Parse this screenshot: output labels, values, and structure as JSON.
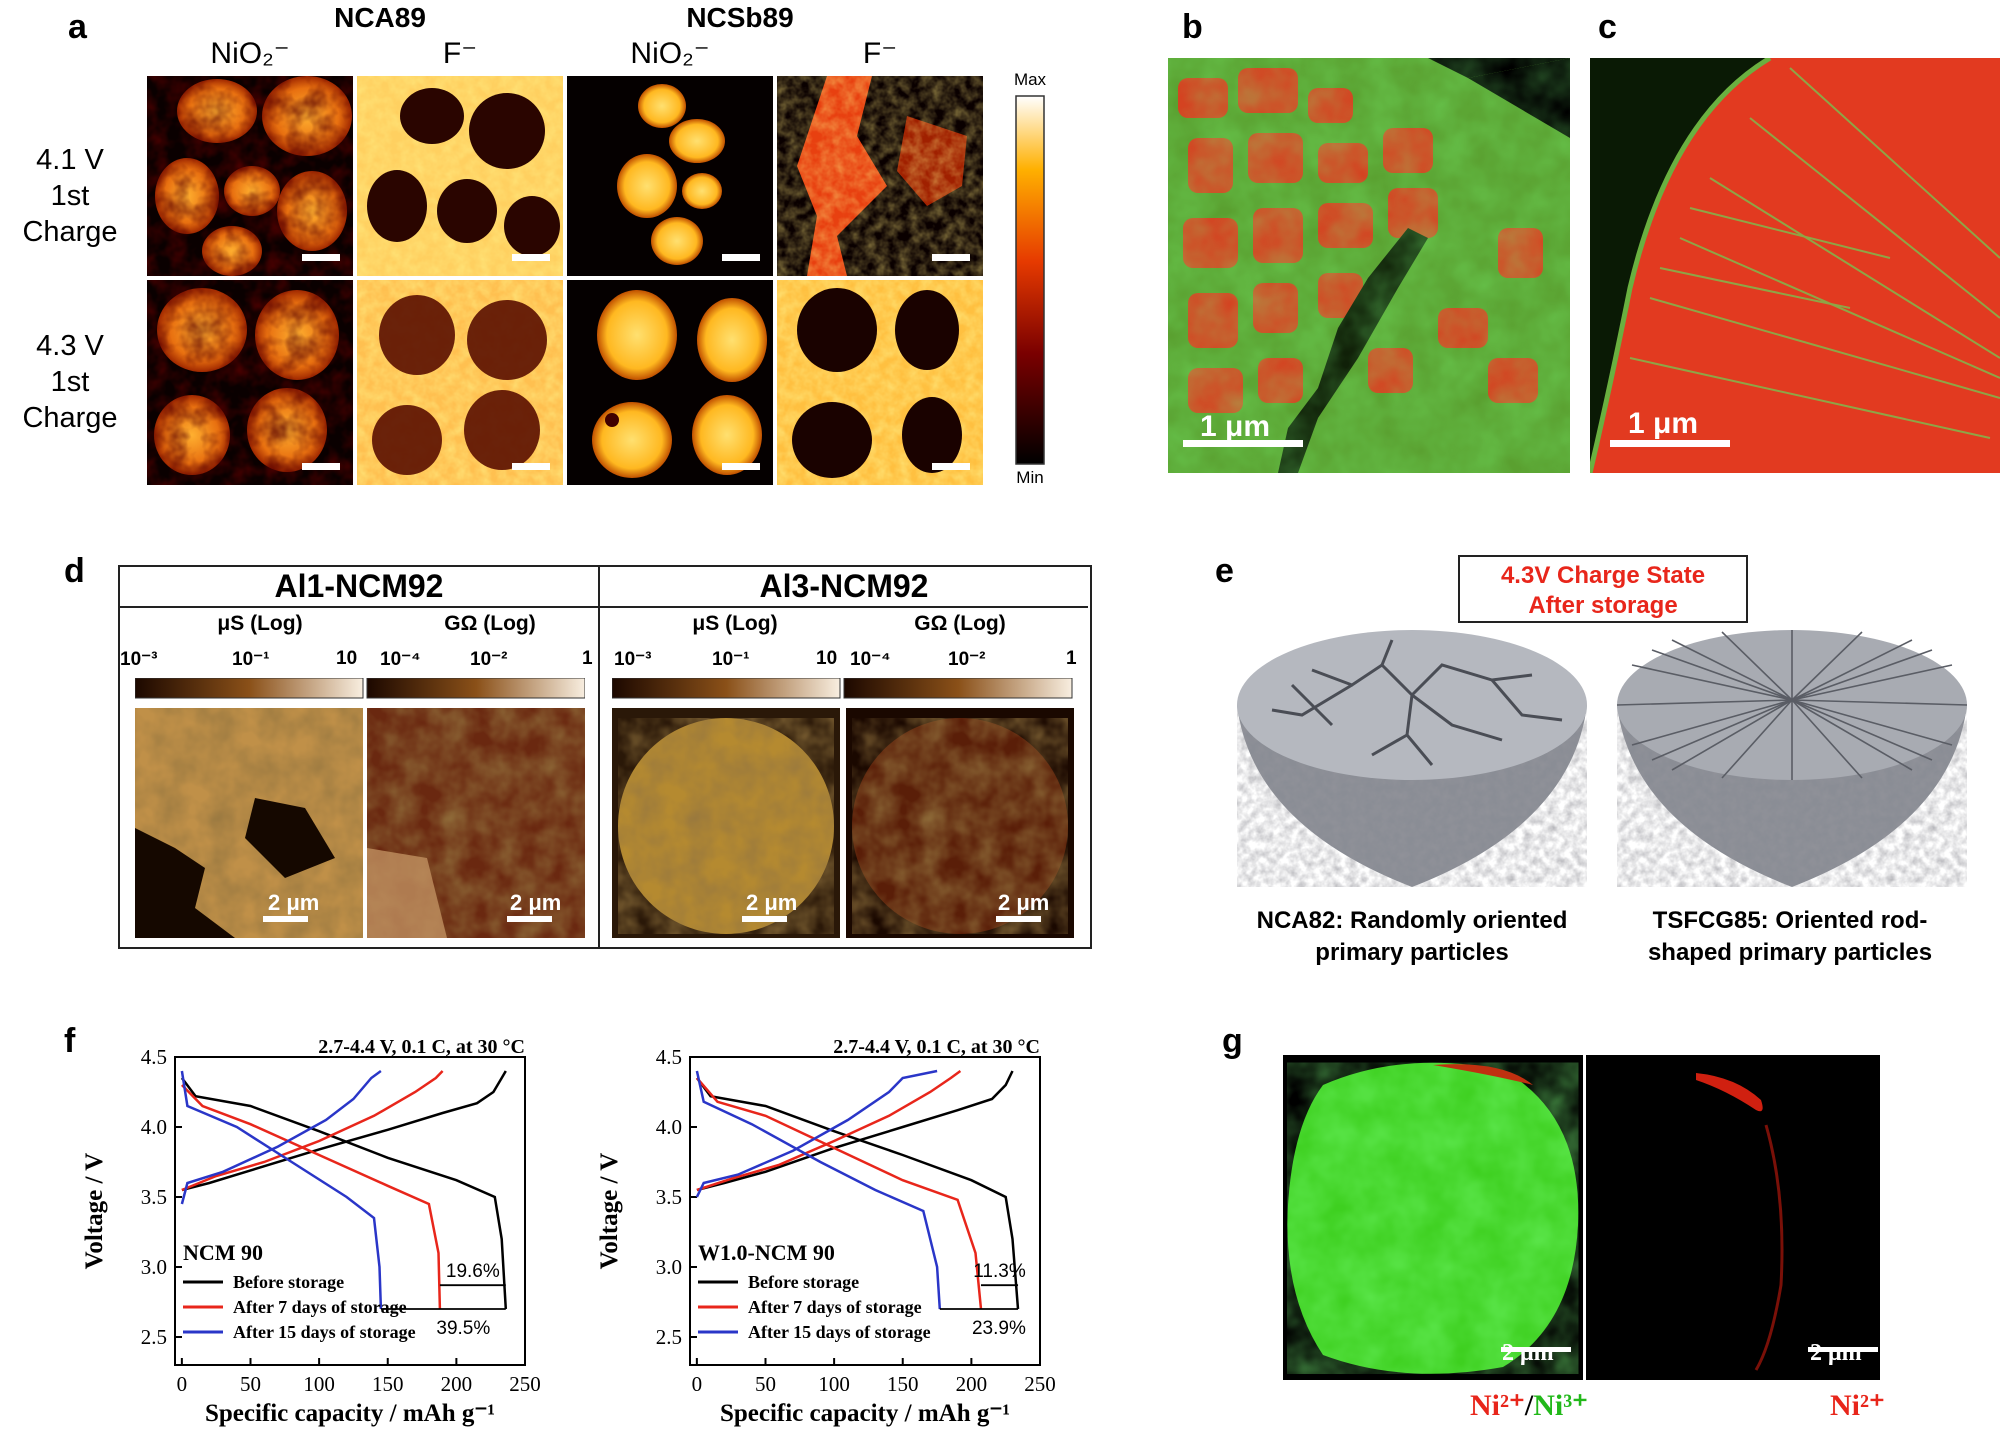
{
  "panel_labels": {
    "a": "a",
    "b": "b",
    "c": "c",
    "d": "d",
    "e": "e",
    "f": "f",
    "g": "g"
  },
  "panel_a": {
    "groups": [
      "NCA89",
      "NCSb89"
    ],
    "columns": [
      "NiO₂⁻",
      "F⁻",
      "NiO₂⁻",
      "F⁻"
    ],
    "rows": [
      {
        "voltage": "4.1 V",
        "step": "1st Charge"
      },
      {
        "voltage": "4.3 V",
        "step": "1st Charge"
      }
    ],
    "colorbar": {
      "max": "Max",
      "min": "Min"
    }
  },
  "panel_b": {
    "scale": "1 μm"
  },
  "panel_c": {
    "scale": "1 μm"
  },
  "panel_d": {
    "samples": [
      "Al1-NCM92",
      "Al3-NCM92"
    ],
    "scale_titles": [
      "μS (Log)",
      "GΩ (Log)",
      "μS (Log)",
      "GΩ (Log)"
    ],
    "ticks_us": [
      "10⁻³",
      "10⁻¹",
      "10"
    ],
    "ticks_gohm": [
      "10⁻⁴",
      "10⁻²",
      "1"
    ],
    "scale": "2 μm"
  },
  "panel_e": {
    "title_line1": "4.3V Charge State",
    "title_line2": "After storage",
    "left_caption_1": "NCA82: Randomly oriented",
    "left_caption_2": "primary particles",
    "right_caption_1": "TSFCG85: Oriented rod-",
    "right_caption_2": "shaped primary particles"
  },
  "panel_g": {
    "scale": "2 μm",
    "left_label_a": "Ni²⁺",
    "left_label_sep": "/",
    "left_label_b": "Ni³⁺",
    "right_label": "Ni²⁺"
  },
  "chart_data": [
    {
      "type": "line",
      "title": "2.7-4.4 V, 0.1 C, at 30 °C",
      "xlabel": "Specific capacity / mAh g⁻¹",
      "ylabel": "Voltage / V",
      "xlim": [
        -5,
        250
      ],
      "ylim": [
        2.3,
        4.5
      ],
      "xticks": [
        "0",
        "50",
        "100",
        "150",
        "200",
        "250"
      ],
      "yticks": [
        "2.5",
        "3.0",
        "3.5",
        "4.0",
        "4.5"
      ],
      "sample": "NCM 90",
      "annotations": [
        "19.6%",
        "39.5%"
      ],
      "colors": {
        "before": "#000000",
        "d7": "#e8261b",
        "d15": "#2a36c8"
      },
      "series": [
        {
          "name": "Before storage",
          "charge": [
            [
              0,
              3.55
            ],
            [
              20,
              3.6
            ],
            [
              50,
              3.69
            ],
            [
              100,
              3.84
            ],
            [
              150,
              3.98
            ],
            [
              190,
              4.1
            ],
            [
              215,
              4.17
            ],
            [
              227,
              4.25
            ],
            [
              233,
              4.35
            ],
            [
              236,
              4.4
            ]
          ],
          "discharge": [
            [
              0,
              4.35
            ],
            [
              10,
              4.22
            ],
            [
              50,
              4.15
            ],
            [
              100,
              3.97
            ],
            [
              150,
              3.78
            ],
            [
              200,
              3.62
            ],
            [
              228,
              3.5
            ],
            [
              233,
              3.2
            ],
            [
              236,
              2.7
            ]
          ]
        },
        {
          "name": "After 7 days of storage",
          "charge": [
            [
              0,
              3.55
            ],
            [
              25,
              3.65
            ],
            [
              60,
              3.75
            ],
            [
              100,
              3.9
            ],
            [
              140,
              4.08
            ],
            [
              170,
              4.25
            ],
            [
              185,
              4.35
            ],
            [
              190,
              4.4
            ]
          ],
          "discharge": [
            [
              0,
              4.3
            ],
            [
              15,
              4.15
            ],
            [
              50,
              4.02
            ],
            [
              100,
              3.8
            ],
            [
              150,
              3.58
            ],
            [
              180,
              3.45
            ],
            [
              187,
              3.1
            ],
            [
              188,
              2.7
            ]
          ]
        },
        {
          "name": "After 15 days of storage",
          "charge": [
            [
              0,
              3.45
            ],
            [
              4,
              3.6
            ],
            [
              30,
              3.68
            ],
            [
              70,
              3.86
            ],
            [
              105,
              4.05
            ],
            [
              125,
              4.2
            ],
            [
              138,
              4.35
            ],
            [
              145,
              4.4
            ]
          ],
          "discharge": [
            [
              0,
              4.4
            ],
            [
              4,
              4.15
            ],
            [
              40,
              4.0
            ],
            [
              80,
              3.75
            ],
            [
              120,
              3.5
            ],
            [
              140,
              3.35
            ],
            [
              144,
              3.0
            ],
            [
              145,
              2.7
            ]
          ]
        }
      ]
    },
    {
      "type": "line",
      "title": "2.7-4.4 V, 0.1 C, at 30 °C",
      "xlabel": "Specific capacity / mAh g⁻¹",
      "ylabel": "Voltage / V",
      "xlim": [
        -5,
        250
      ],
      "ylim": [
        2.3,
        4.5
      ],
      "xticks": [
        "0",
        "50",
        "100",
        "150",
        "200",
        "250"
      ],
      "yticks": [
        "2.5",
        "3.0",
        "3.5",
        "4.0",
        "4.5"
      ],
      "sample": "W1.0-NCM 90",
      "annotations": [
        "11.3%",
        "23.9%"
      ],
      "colors": {
        "before": "#000000",
        "d7": "#e8261b",
        "d15": "#2a36c8"
      },
      "series": [
        {
          "name": "Before storage",
          "charge": [
            [
              0,
              3.55
            ],
            [
              20,
              3.6
            ],
            [
              50,
              3.68
            ],
            [
              100,
              3.85
            ],
            [
              150,
              4.0
            ],
            [
              190,
              4.12
            ],
            [
              215,
              4.2
            ],
            [
              225,
              4.3
            ],
            [
              230,
              4.4
            ]
          ],
          "discharge": [
            [
              0,
              4.35
            ],
            [
              10,
              4.22
            ],
            [
              50,
              4.15
            ],
            [
              100,
              3.97
            ],
            [
              150,
              3.8
            ],
            [
              200,
              3.62
            ],
            [
              225,
              3.5
            ],
            [
              230,
              3.2
            ],
            [
              234,
              2.7
            ]
          ]
        },
        {
          "name": "After 7 days of storage",
          "charge": [
            [
              0,
              3.55
            ],
            [
              25,
              3.63
            ],
            [
              60,
              3.73
            ],
            [
              100,
              3.9
            ],
            [
              140,
              4.08
            ],
            [
              170,
              4.25
            ],
            [
              185,
              4.35
            ],
            [
              192,
              4.4
            ]
          ],
          "discharge": [
            [
              0,
              4.35
            ],
            [
              15,
              4.18
            ],
            [
              50,
              4.08
            ],
            [
              100,
              3.85
            ],
            [
              150,
              3.62
            ],
            [
              190,
              3.48
            ],
            [
              203,
              3.1
            ],
            [
              207,
              2.7
            ]
          ]
        },
        {
          "name": "After 15 days of storage",
          "charge": [
            [
              0,
              3.5
            ],
            [
              5,
              3.6
            ],
            [
              30,
              3.66
            ],
            [
              70,
              3.83
            ],
            [
              110,
              4.05
            ],
            [
              140,
              4.25
            ],
            [
              150,
              4.35
            ],
            [
              175,
              4.4
            ]
          ],
          "discharge": [
            [
              0,
              4.4
            ],
            [
              5,
              4.18
            ],
            [
              40,
              4.02
            ],
            [
              90,
              3.75
            ],
            [
              130,
              3.55
            ],
            [
              165,
              3.4
            ],
            [
              175,
              3.0
            ],
            [
              177,
              2.7
            ]
          ]
        }
      ]
    }
  ]
}
